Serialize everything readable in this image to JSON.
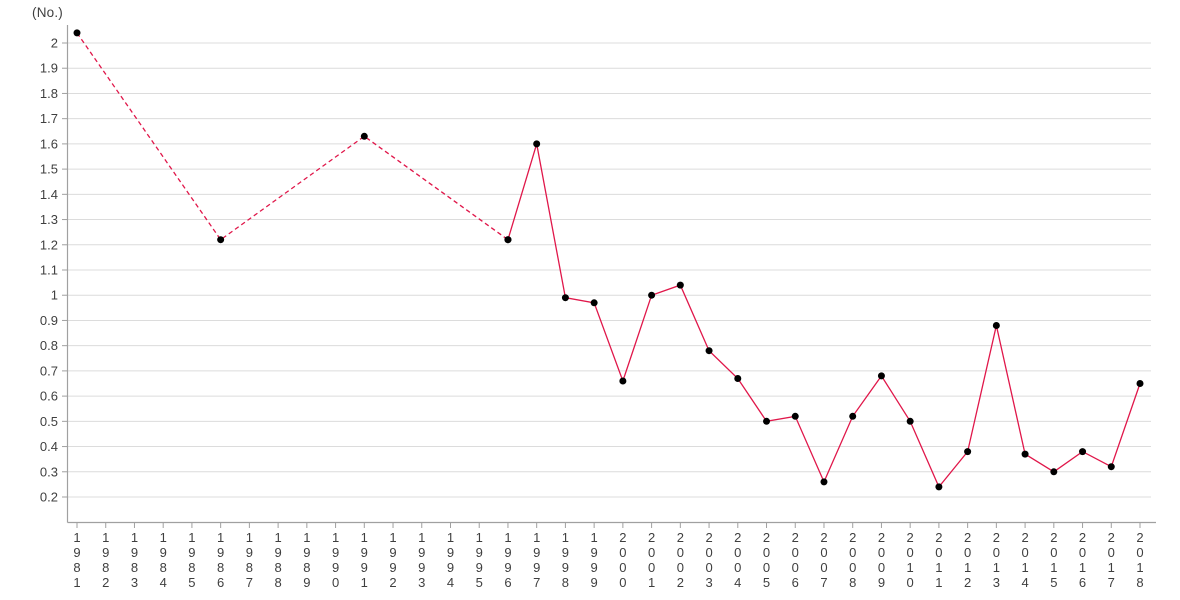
{
  "chart_data": {
    "type": "line",
    "title": "",
    "y_axis": {
      "unit_label": "(No.)",
      "min": 0.2,
      "max": 2.0,
      "tick_step": 0.1,
      "tick_labels": [
        "2",
        "1.9",
        "1.8",
        "1.7",
        "1.6",
        "1.5",
        "1.4",
        "1.3",
        "1.2",
        "1.1",
        "1",
        "0.9",
        "0.8",
        "0.7",
        "0.6",
        "0.5",
        "0.4",
        "0.3",
        "0.2"
      ]
    },
    "x_axis": {
      "label_orientation": "vertical-stacked",
      "tick_labels": [
        "1981",
        "1982",
        "1983",
        "1984",
        "1985",
        "1986",
        "1987",
        "1988",
        "1989",
        "1990",
        "1991",
        "1992",
        "1993",
        "1994",
        "1995",
        "1996",
        "1997",
        "1998",
        "1999",
        "2000",
        "2001",
        "2002",
        "2003",
        "2004",
        "2005",
        "2006",
        "2007",
        "2008",
        "2009",
        "2010",
        "2011",
        "2012",
        "2013",
        "2014",
        "2015",
        "2016",
        "2017",
        "2018"
      ]
    },
    "grid": true,
    "legend": "none",
    "series": [
      {
        "name": "dashed-segment",
        "line_style": "dashed",
        "points": [
          [
            1981,
            2.04
          ],
          [
            1986,
            1.22
          ],
          [
            1991,
            1.63
          ],
          [
            1996,
            1.22
          ]
        ]
      },
      {
        "name": "solid-segment",
        "line_style": "solid",
        "points": [
          [
            1996,
            1.22
          ],
          [
            1997,
            1.6
          ],
          [
            1998,
            0.99
          ],
          [
            1999,
            0.97
          ],
          [
            2000,
            0.66
          ],
          [
            2001,
            1.0
          ],
          [
            2002,
            1.04
          ],
          [
            2003,
            0.78
          ],
          [
            2004,
            0.67
          ],
          [
            2005,
            0.5
          ],
          [
            2006,
            0.52
          ],
          [
            2007,
            0.26
          ],
          [
            2008,
            0.52
          ],
          [
            2009,
            0.68
          ],
          [
            2010,
            0.5
          ],
          [
            2011,
            0.24
          ],
          [
            2012,
            0.38
          ],
          [
            2013,
            0.88
          ],
          [
            2014,
            0.37
          ],
          [
            2015,
            0.3
          ],
          [
            2016,
            0.38
          ],
          [
            2017,
            0.32
          ],
          [
            2018,
            0.65
          ]
        ]
      }
    ],
    "colors": {
      "line": "#e0174a",
      "marker": "#000000",
      "grid": "#dcdcdc",
      "axis": "#a0a0a0",
      "text": "#3f3f3f"
    }
  }
}
